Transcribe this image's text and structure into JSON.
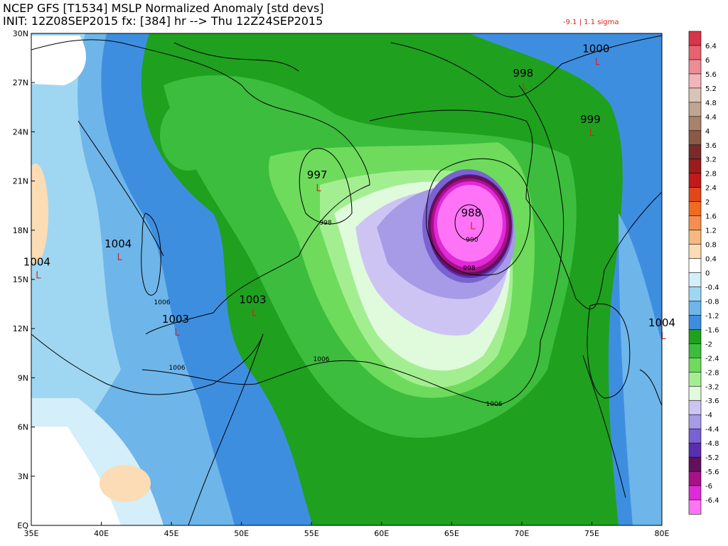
{
  "header": {
    "title": "NCEP GFS [T1534] MSLP Normalized Anomaly [std devs]",
    "init": "INIT: 12Z08SEP2015 fx: [384] hr --> Thu 12Z24SEP2015",
    "range": "-9.1 | 1.1 sigma"
  },
  "lat_labels": [
    "30N",
    "27N",
    "24N",
    "21N",
    "18N",
    "15N",
    "12N",
    "9N",
    "6N",
    "3N",
    "EQ"
  ],
  "lon_labels": [
    "35E",
    "40E",
    "45E",
    "50E",
    "55E",
    "60E",
    "65E",
    "70E",
    "75E",
    "80E"
  ],
  "isobars": [
    {
      "label": "1006"
    },
    {
      "label": "1006"
    },
    {
      "label": "1006"
    },
    {
      "label": "1006"
    },
    {
      "label": "998"
    },
    {
      "label": "998"
    },
    {
      "label": "990"
    }
  ],
  "pressure_centers": [
    {
      "label": "1000",
      "lon": 75.3,
      "lat": 28.5,
      "type": "L"
    },
    {
      "label": "998",
      "lon": 70.1,
      "lat": 27.0,
      "type": "L"
    },
    {
      "label": "999",
      "lon": 74.9,
      "lat": 24.2,
      "type": "L"
    },
    {
      "label": "997",
      "lon": 55.4,
      "lat": 20.8,
      "type": "L"
    },
    {
      "label": "988",
      "lon": 66.4,
      "lat": 18.5,
      "type": "L"
    },
    {
      "label": "1004",
      "lon": 41.2,
      "lat": 16.6,
      "type": "L"
    },
    {
      "label": "1004",
      "lon": 35.4,
      "lat": 15.5,
      "type": "L"
    },
    {
      "label": "1003",
      "lon": 45.3,
      "lat": 12.0,
      "type": "L"
    },
    {
      "label": "1003",
      "lon": 50.8,
      "lat": 13.2,
      "type": "L"
    },
    {
      "label": "1004",
      "lon": 80.0,
      "lat": 11.8,
      "type": "L"
    }
  ],
  "colorbar": {
    "labels": [
      "6.4",
      "6",
      "5.6",
      "5.2",
      "4.8",
      "4.4",
      "4",
      "3.6",
      "3.2",
      "2.8",
      "2.4",
      "2",
      "1.6",
      "1.2",
      "0.8",
      "0.4",
      "0",
      "-0.4",
      "-0.8",
      "-1.2",
      "-1.6",
      "-2",
      "-2.4",
      "-2.8",
      "-3.2",
      "-3.6",
      "-4",
      "-4.4",
      "-4.8",
      "-5.2",
      "-5.6",
      "-6",
      "-6.4"
    ],
    "colors": [
      "#d9354a",
      "#e6646f",
      "#ee8c95",
      "#f2b5b9",
      "#d9c4b8",
      "#c0a692",
      "#a8826a",
      "#8a5a48",
      "#7a2a2a",
      "#9a1d1d",
      "#c21a1a",
      "#e2461a",
      "#f06a20",
      "#f39050",
      "#f6b87e",
      "#fbdcb4",
      "#ffffff",
      "#d4eefa",
      "#9fd7f2",
      "#6eb5ea",
      "#3e8ee0",
      "#1fa11f",
      "#3dbd3d",
      "#6edb5c",
      "#a4ee92",
      "#e0fadc",
      "#cdc4f4",
      "#a79ae6",
      "#7a62d2",
      "#5a2eb2",
      "#62105e",
      "#a8108a",
      "#e02ad8",
      "#ff74f6"
    ]
  }
}
